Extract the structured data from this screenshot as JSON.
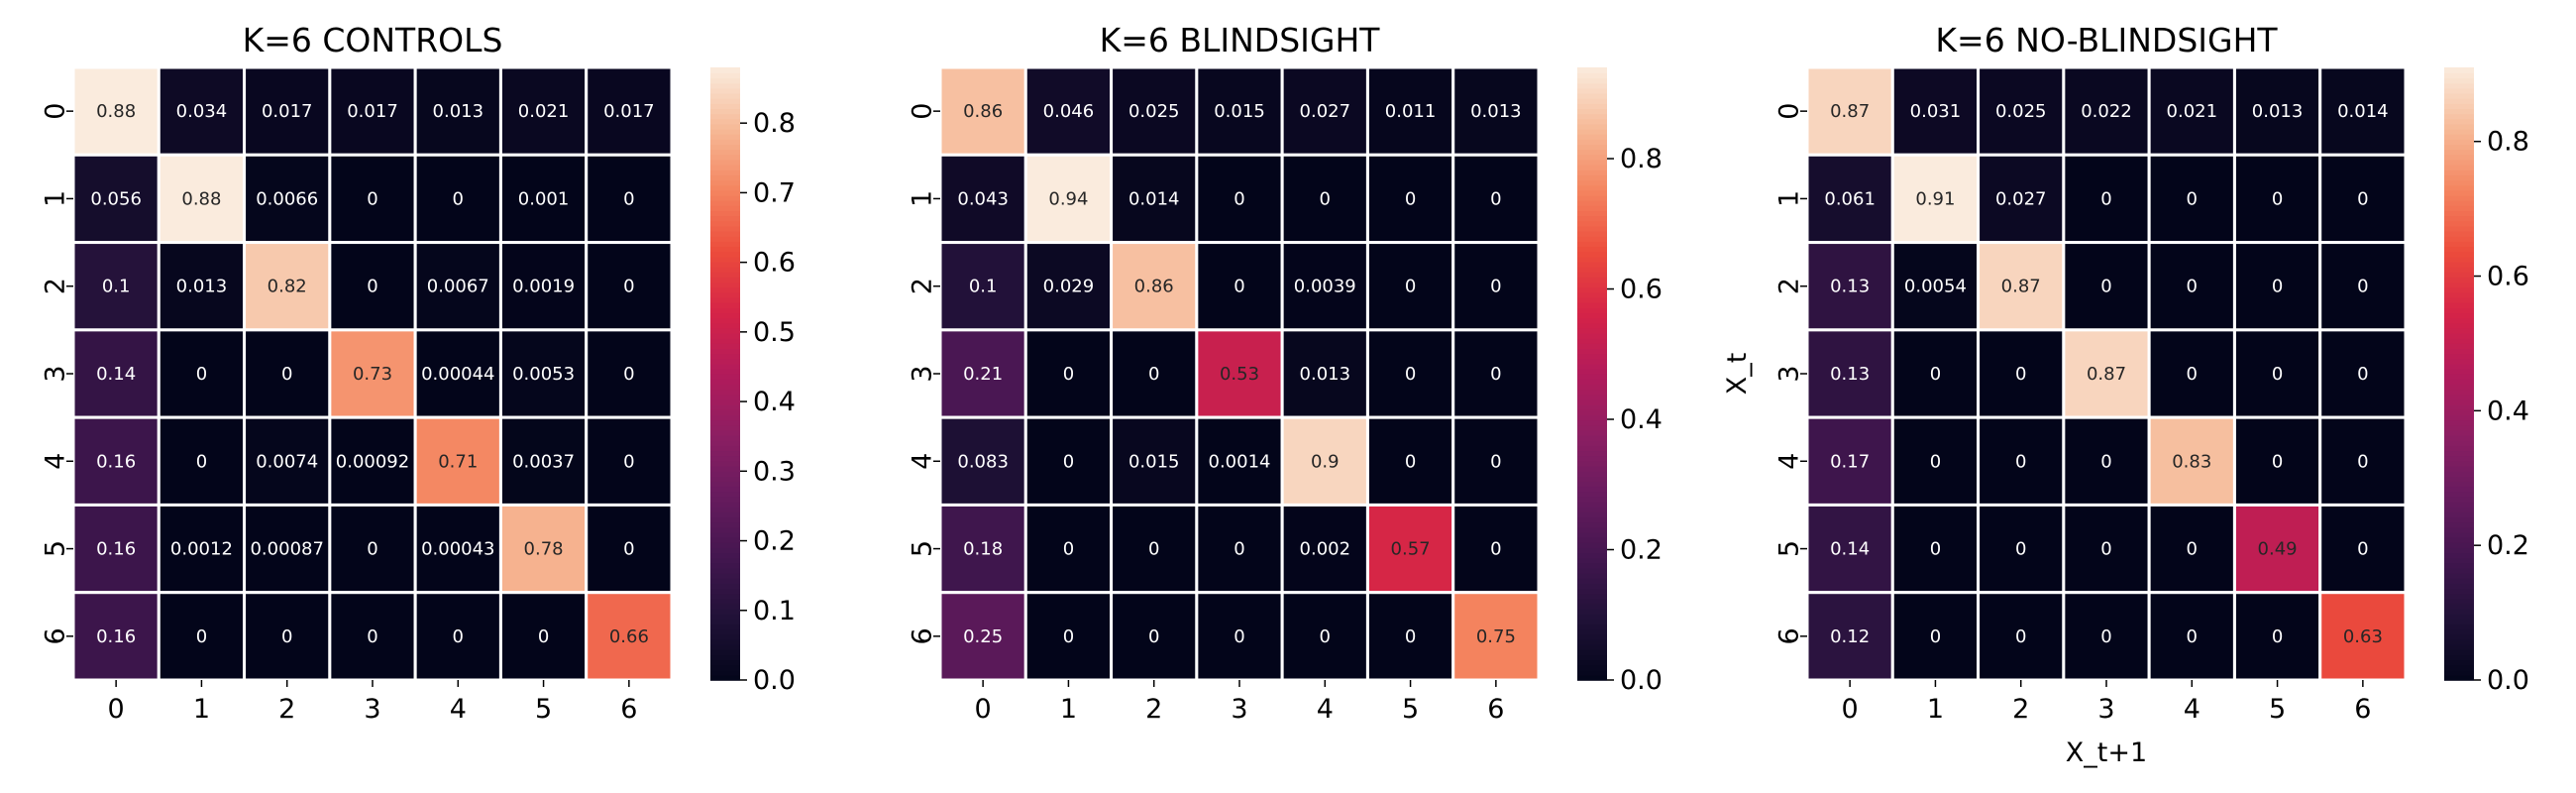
{
  "chart_data": [
    {
      "type": "heatmap",
      "title": "K=6 CONTROLS",
      "xlabel": "",
      "ylabel": "",
      "x_categories": [
        "0",
        "1",
        "2",
        "3",
        "4",
        "5",
        "6"
      ],
      "y_categories": [
        "0",
        "1",
        "2",
        "3",
        "4",
        "5",
        "6"
      ],
      "values": [
        [
          0.88,
          0.034,
          0.017,
          0.017,
          0.013,
          0.021,
          0.017
        ],
        [
          0.056,
          0.88,
          0.0066,
          0,
          0,
          0.001,
          0
        ],
        [
          0.1,
          0.013,
          0.82,
          0,
          0.0067,
          0.0019,
          0
        ],
        [
          0.14,
          0,
          0,
          0.73,
          0.00044,
          0.0053,
          0
        ],
        [
          0.16,
          0,
          0.0074,
          0.00092,
          0.71,
          0.0037,
          0
        ],
        [
          0.16,
          0.0012,
          0.00087,
          0,
          0.00043,
          0.78,
          0
        ],
        [
          0.16,
          0,
          0,
          0,
          0,
          0,
          0.66
        ]
      ],
      "labels": [
        [
          "0.88",
          "0.034",
          "0.017",
          "0.017",
          "0.013",
          "0.021",
          "0.017"
        ],
        [
          "0.056",
          "0.88",
          "0.0066",
          "0",
          "0",
          "0.001",
          "0"
        ],
        [
          "0.1",
          "0.013",
          "0.82",
          "0",
          "0.0067",
          "0.0019",
          "0"
        ],
        [
          "0.14",
          "0",
          "0",
          "0.73",
          "0.00044",
          "0.0053",
          "0"
        ],
        [
          "0.16",
          "0",
          "0.0074",
          "0.00092",
          "0.71",
          "0.0037",
          "0"
        ],
        [
          "0.16",
          "0.0012",
          "0.00087",
          "0",
          "0.00043",
          "0.78",
          "0"
        ],
        [
          "0.16",
          "0",
          "0",
          "0",
          "0",
          "0",
          "0.66"
        ]
      ],
      "colorbar": {
        "min": 0,
        "max": 0.88,
        "ticks": [
          "0.0",
          "0.1",
          "0.2",
          "0.3",
          "0.4",
          "0.5",
          "0.6",
          "0.7",
          "0.8"
        ]
      },
      "colormap": "rocket"
    },
    {
      "type": "heatmap",
      "title": "K=6 BLINDSIGHT",
      "xlabel": "",
      "ylabel": "",
      "x_categories": [
        "0",
        "1",
        "2",
        "3",
        "4",
        "5",
        "6"
      ],
      "y_categories": [
        "0",
        "1",
        "2",
        "3",
        "4",
        "5",
        "6"
      ],
      "values": [
        [
          0.86,
          0.046,
          0.025,
          0.015,
          0.027,
          0.011,
          0.013
        ],
        [
          0.043,
          0.94,
          0.014,
          0,
          0,
          0,
          0
        ],
        [
          0.1,
          0.029,
          0.86,
          0,
          0.0039,
          0,
          0
        ],
        [
          0.21,
          0,
          0,
          0.53,
          0.013,
          0,
          0
        ],
        [
          0.083,
          0,
          0.015,
          0.0014,
          0.9,
          0,
          0
        ],
        [
          0.18,
          0,
          0,
          0,
          0.002,
          0.57,
          0
        ],
        [
          0.25,
          0,
          0,
          0,
          0,
          0,
          0.75
        ]
      ],
      "labels": [
        [
          "0.86",
          "0.046",
          "0.025",
          "0.015",
          "0.027",
          "0.011",
          "0.013"
        ],
        [
          "0.043",
          "0.94",
          "0.014",
          "0",
          "0",
          "0",
          "0"
        ],
        [
          "0.1",
          "0.029",
          "0.86",
          "0",
          "0.0039",
          "0",
          "0"
        ],
        [
          "0.21",
          "0",
          "0",
          "0.53",
          "0.013",
          "0",
          "0"
        ],
        [
          "0.083",
          "0",
          "0.015",
          "0.0014",
          "0.9",
          "0",
          "0"
        ],
        [
          "0.18",
          "0",
          "0",
          "0",
          "0.002",
          "0.57",
          "0"
        ],
        [
          "0.25",
          "0",
          "0",
          "0",
          "0",
          "0",
          "0.75"
        ]
      ],
      "colorbar": {
        "min": 0,
        "max": 0.94,
        "ticks": [
          "0.0",
          "0.2",
          "0.4",
          "0.6",
          "0.8"
        ]
      },
      "colormap": "rocket"
    },
    {
      "type": "heatmap",
      "title": "K=6 NO-BLINDSIGHT",
      "xlabel": "X_t+1",
      "ylabel": "X_t",
      "x_categories": [
        "0",
        "1",
        "2",
        "3",
        "4",
        "5",
        "6"
      ],
      "y_categories": [
        "0",
        "1",
        "2",
        "3",
        "4",
        "5",
        "6"
      ],
      "values": [
        [
          0.87,
          0.031,
          0.025,
          0.022,
          0.021,
          0.013,
          0.014
        ],
        [
          0.061,
          0.91,
          0.027,
          0,
          0,
          0,
          0
        ],
        [
          0.13,
          0.0054,
          0.87,
          0,
          0,
          0,
          0
        ],
        [
          0.13,
          0,
          0,
          0.87,
          0,
          0,
          0
        ],
        [
          0.17,
          0,
          0,
          0,
          0.83,
          0,
          0
        ],
        [
          0.14,
          0,
          0,
          0,
          0,
          0.49,
          0
        ],
        [
          0.12,
          0,
          0,
          0,
          0,
          0,
          0.63
        ]
      ],
      "labels": [
        [
          "0.87",
          "0.031",
          "0.025",
          "0.022",
          "0.021",
          "0.013",
          "0.014"
        ],
        [
          "0.061",
          "0.91",
          "0.027",
          "0",
          "0",
          "0",
          "0"
        ],
        [
          "0.13",
          "0.0054",
          "0.87",
          "0",
          "0",
          "0",
          "0"
        ],
        [
          "0.13",
          "0",
          "0",
          "0.87",
          "0",
          "0",
          "0"
        ],
        [
          "0.17",
          "0",
          "0",
          "0",
          "0.83",
          "0",
          "0"
        ],
        [
          "0.14",
          "0",
          "0",
          "0",
          "0",
          "0.49",
          "0"
        ],
        [
          "0.12",
          "0",
          "0",
          "0",
          "0",
          "0",
          "0.63"
        ]
      ],
      "colorbar": {
        "min": 0,
        "max": 0.91,
        "ticks": [
          "0.0",
          "0.2",
          "0.4",
          "0.6",
          "0.8"
        ]
      },
      "colormap": "rocket"
    }
  ]
}
